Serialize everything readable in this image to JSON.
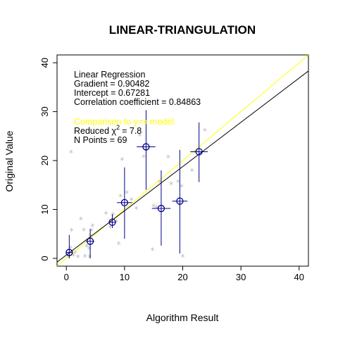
{
  "chart_data": {
    "type": "scatter",
    "title": "LINEAR-TRIANGULATION",
    "xlabel": "Algorithm Result",
    "ylabel": "Original Value",
    "xlim": [
      -1.6,
      41.6
    ],
    "ylim": [
      -1.6,
      41.6
    ],
    "xticks": [
      0,
      10,
      20,
      30,
      40
    ],
    "yticks": [
      0,
      10,
      20,
      30,
      40
    ],
    "grid": false,
    "annotations": {
      "regression_header": "Linear Regression",
      "gradient": "Gradient = 0.90482",
      "intercept": "Intercept = 0.67281",
      "correlation": "Correlation coefficient = 0.84863",
      "comparison": "Comparison to y=x model",
      "reduced_chi2_prefix": "Reduced χ",
      "reduced_chi2_sup": "2",
      "reduced_chi2_value": "=    7.8",
      "npoints": "N Points =  69"
    },
    "regression_line": {
      "gradient": 0.90482,
      "intercept": 0.67281,
      "color": "#000000"
    },
    "identity_line": {
      "gradient": 1,
      "intercept": 0,
      "color": "#ffff00"
    },
    "raw_points": {
      "color": "#bbbbbb",
      "marker": "*",
      "points": [
        [
          0.3,
          0.2
        ],
        [
          0.5,
          0.8
        ],
        [
          0.7,
          2.0
        ],
        [
          0.9,
          5.5
        ],
        [
          0.8,
          21.5
        ],
        [
          1.2,
          0.4
        ],
        [
          1.5,
          1.0
        ],
        [
          2.0,
          0.1
        ],
        [
          2.5,
          7.8
        ],
        [
          3.0,
          5.6
        ],
        [
          3.2,
          0.2
        ],
        [
          3.5,
          2.3
        ],
        [
          3.9,
          1.8
        ],
        [
          4.1,
          4.5
        ],
        [
          4.3,
          5.5
        ],
        [
          4.5,
          6.5
        ],
        [
          4.0,
          0.1
        ],
        [
          6.8,
          9.0
        ],
        [
          7.5,
          6.2
        ],
        [
          8.0,
          8.8
        ],
        [
          8.6,
          7.3
        ],
        [
          9.0,
          2.8
        ],
        [
          9.3,
          12.5
        ],
        [
          9.6,
          20.0
        ],
        [
          10.4,
          13.2
        ],
        [
          11.2,
          11.8
        ],
        [
          12.0,
          10.0
        ],
        [
          12.6,
          25.0
        ],
        [
          13.3,
          20.6
        ],
        [
          13.7,
          22.0
        ],
        [
          14.8,
          1.6
        ],
        [
          15.0,
          10.5
        ],
        [
          15.5,
          10.2
        ],
        [
          16.0,
          15.5
        ],
        [
          17.5,
          20.5
        ],
        [
          18.0,
          15.0
        ],
        [
          19.2,
          15.5
        ],
        [
          19.5,
          11.0
        ],
        [
          19.8,
          14.5
        ],
        [
          20.0,
          0.2
        ],
        [
          21.6,
          17.8
        ],
        [
          22.3,
          21.6
        ],
        [
          23.8,
          26.0
        ]
      ]
    },
    "binned_points": {
      "color": "#00008b",
      "points": [
        {
          "x": 0.5,
          "y": 1.2,
          "xerr": 0.6,
          "yerr_low": 1.2,
          "yerr_high": 3.6
        },
        {
          "x": 4.1,
          "y": 3.5,
          "xerr": 0.7,
          "yerr_low": 3.5,
          "yerr_high": 2.5
        },
        {
          "x": 7.9,
          "y": 7.4,
          "xerr": 0.6,
          "yerr_low": 1.2,
          "yerr_high": 1.6
        },
        {
          "x": 10.0,
          "y": 11.4,
          "xerr": 1.3,
          "yerr_low": 7.4,
          "yerr_high": 7.2
        },
        {
          "x": 13.7,
          "y": 22.8,
          "xerr": 1.6,
          "yerr_low": 8.8,
          "yerr_high": 7.5
        },
        {
          "x": 16.3,
          "y": 10.2,
          "xerr": 1.6,
          "yerr_low": 7.6,
          "yerr_high": 7.8
        },
        {
          "x": 19.5,
          "y": 11.7,
          "xerr": 1.3,
          "yerr_low": 10.7,
          "yerr_high": 10.5
        },
        {
          "x": 22.8,
          "y": 21.8,
          "xerr": 1.5,
          "yerr_low": 6.2,
          "yerr_high": 6.0
        }
      ]
    }
  }
}
